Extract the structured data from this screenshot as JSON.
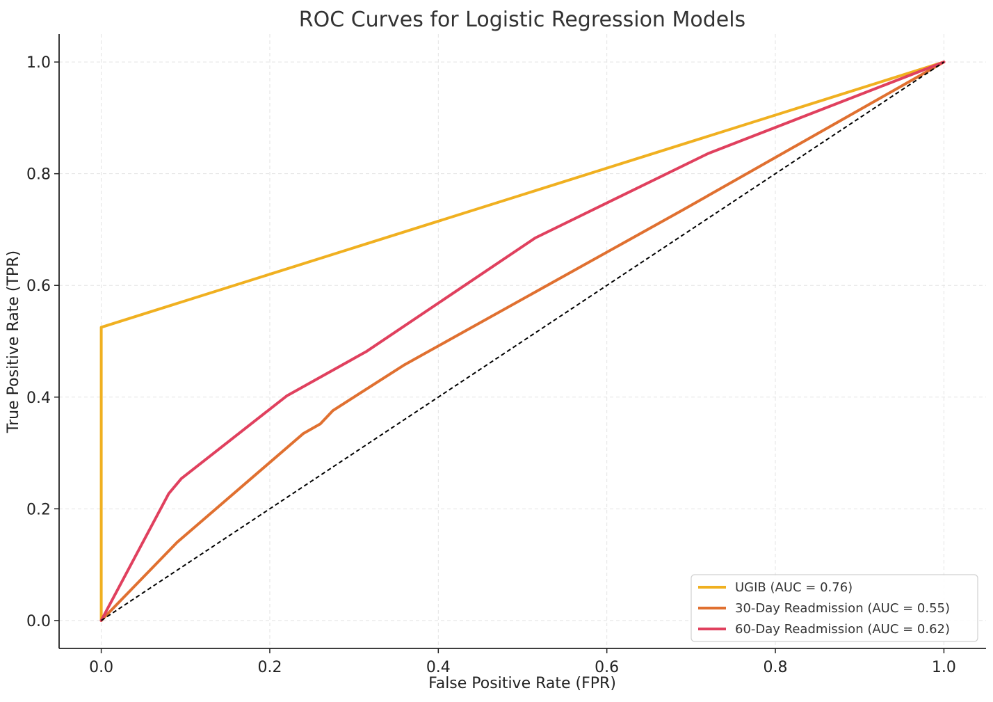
{
  "chart_data": {
    "type": "line",
    "title": "ROC Curves for Logistic Regression Models",
    "xlabel": "False Positive Rate (FPR)",
    "ylabel": "True Positive Rate (TPR)",
    "xlim": [
      -0.05,
      1.05
    ],
    "ylim": [
      -0.05,
      1.05
    ],
    "xticks": [
      "0.0",
      "0.2",
      "0.4",
      "0.6",
      "0.8",
      "1.0"
    ],
    "yticks": [
      "0.0",
      "0.2",
      "0.4",
      "0.6",
      "0.8",
      "1.0"
    ],
    "grid": true,
    "legend_position": "lower-right",
    "series": [
      {
        "name": "UGIB (AUC = 0.76)",
        "color": "#f0b020",
        "x": [
          0.0,
          0.0,
          1.0
        ],
        "y": [
          0.0,
          0.525,
          1.0
        ]
      },
      {
        "name": "30-Day Readmission (AUC = 0.55)",
        "color": "#e07030",
        "x": [
          0.0,
          0.09,
          0.24,
          0.26,
          0.275,
          0.36,
          0.69,
          1.0
        ],
        "y": [
          0.0,
          0.14,
          0.335,
          0.352,
          0.376,
          0.458,
          0.735,
          1.0
        ]
      },
      {
        "name": "60-Day Readmission (AUC = 0.62)",
        "color": "#e0405e",
        "x": [
          0.0,
          0.08,
          0.095,
          0.22,
          0.315,
          0.515,
          0.72,
          1.0
        ],
        "y": [
          0.0,
          0.227,
          0.254,
          0.402,
          0.482,
          0.685,
          0.836,
          1.0
        ]
      }
    ],
    "reference_line": {
      "color": "#000000",
      "style": "dashed",
      "x": [
        0.0,
        1.0
      ],
      "y": [
        0.0,
        1.0
      ]
    }
  }
}
